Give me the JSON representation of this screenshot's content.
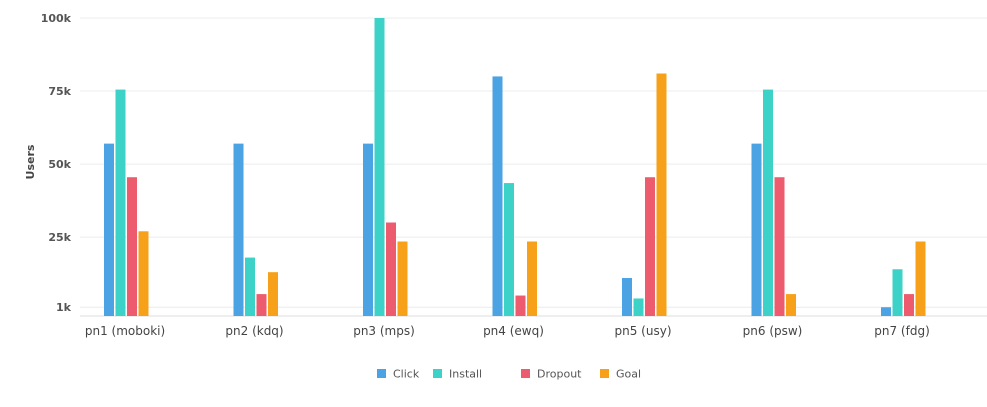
{
  "chart_data": {
    "type": "bar",
    "title": "",
    "xlabel": "",
    "ylabel": "Users",
    "categories": [
      "pn1 (moboki)",
      "pn2 (kdq)",
      "pn3 (mps)",
      "pn4 (ewq)",
      "pn5 (usy)",
      "pn6 (psw)",
      "pn7 (fdg)"
    ],
    "y_ticks": [
      {
        "value": 1000,
        "label": "1k"
      },
      {
        "value": 25000,
        "label": "25k"
      },
      {
        "value": 50000,
        "label": "50k"
      },
      {
        "value": 75000,
        "label": "75k"
      },
      {
        "value": 100000,
        "label": "100k"
      }
    ],
    "ylim": [
      -2000,
      100000
    ],
    "grid": true,
    "legend_position": "bottom-center",
    "series": [
      {
        "name": "Click",
        "color": "#4BA3E3",
        "values": [
          57000,
          57000,
          57000,
          80000,
          11000,
          57000,
          1000
        ]
      },
      {
        "name": "Install",
        "color": "#3DD2C8",
        "values": [
          75500,
          18000,
          100000,
          43500,
          4000,
          75500,
          14000
        ]
      },
      {
        "name": "Dropout",
        "color": "#EC5B6E",
        "values": [
          45500,
          5500,
          30000,
          5000,
          45500,
          45500,
          5500
        ]
      },
      {
        "name": "Goal",
        "color": "#F7A11A",
        "values": [
          27000,
          13000,
          23500,
          23500,
          81000,
          5500,
          23500
        ]
      }
    ]
  }
}
